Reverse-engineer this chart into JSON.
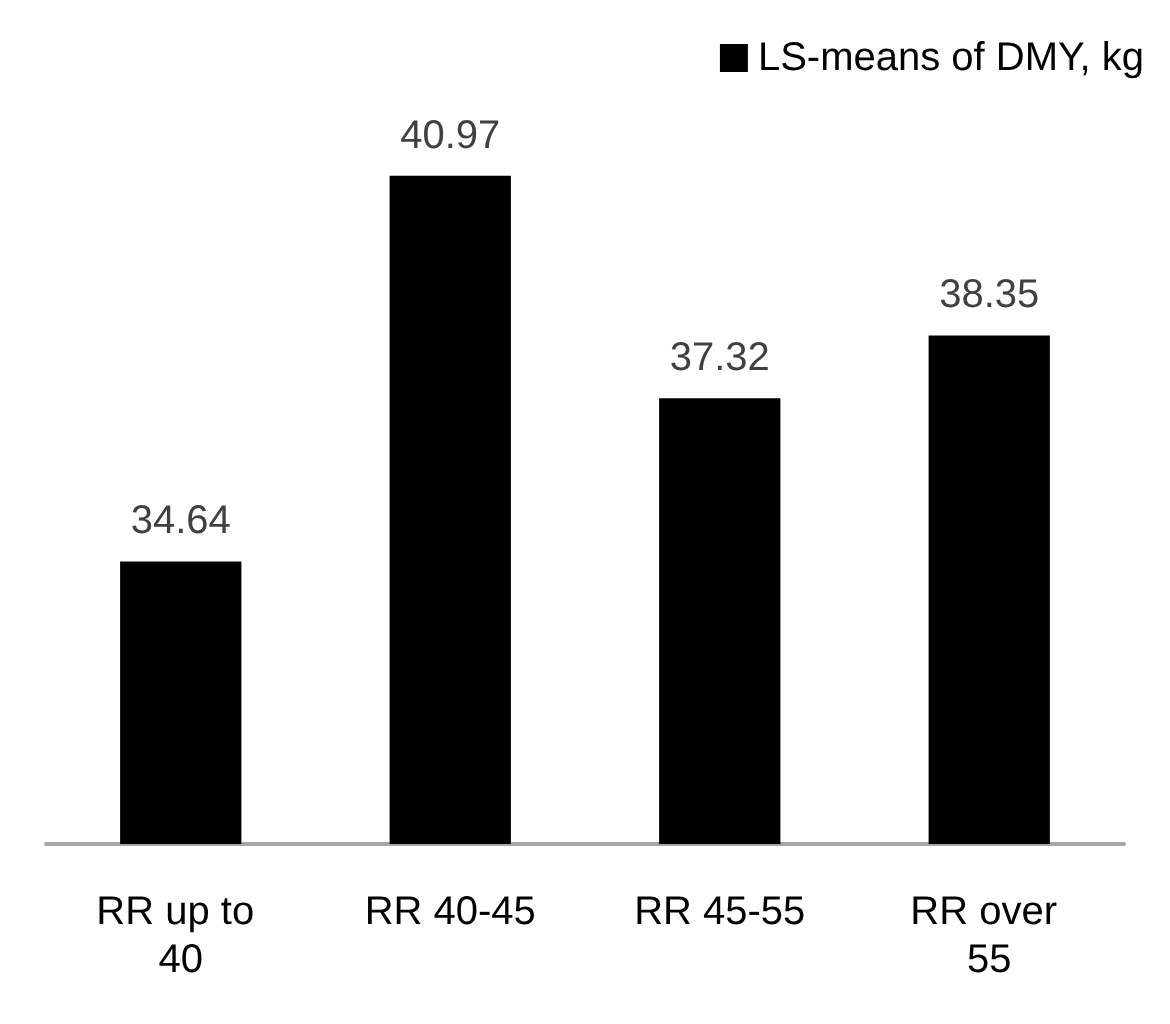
{
  "chart_data": {
    "type": "bar",
    "categories": [
      "RR up to 40",
      "RR 40-45",
      "RR 45-55",
      "RR over 55"
    ],
    "series": [
      {
        "name": "LS-means of DMY, kg",
        "color": "#000000",
        "values": [
          34.64,
          40.97,
          37.32,
          38.35
        ]
      }
    ],
    "ylim": [
      30,
      41
    ],
    "data_labels": true,
    "legend": "top right",
    "grid": false
  }
}
